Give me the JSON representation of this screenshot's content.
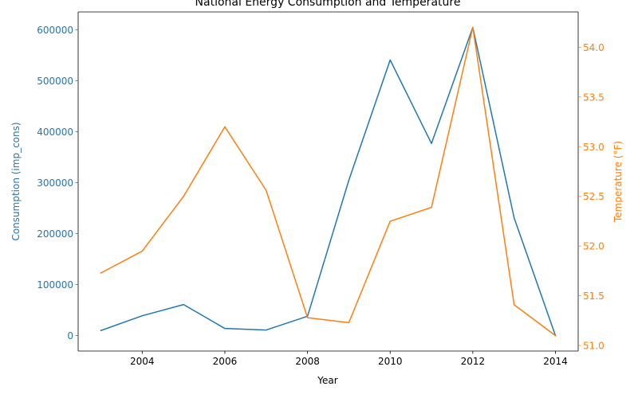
{
  "chart_data": {
    "type": "line",
    "title": "National Energy Consumption and Temperature",
    "xlabel": "Year",
    "x": [
      2003,
      2004,
      2005,
      2006,
      2007,
      2008,
      2009,
      2010,
      2011,
      2012,
      2013,
      2014
    ],
    "x_ticks": [
      2004,
      2006,
      2008,
      2010,
      2012,
      2014
    ],
    "xlim": [
      2002.45,
      2014.55
    ],
    "series": [
      {
        "axis": "left",
        "color": "#1f77b4",
        "values": [
          10000,
          39000,
          61000,
          14000,
          11000,
          38000,
          305000,
          541000,
          377000,
          605000,
          231000,
          0
        ]
      },
      {
        "axis": "right",
        "color": "#ff7f0e",
        "values": [
          51.73,
          51.95,
          52.5,
          53.2,
          52.56,
          51.28,
          51.23,
          52.25,
          52.39,
          54.2,
          51.41,
          51.1
        ]
      }
    ],
    "y_left": {
      "label": "Consumption (imp_cons)",
      "color": "#1f77b4",
      "ticks": [
        0,
        100000,
        200000,
        300000,
        400000,
        500000,
        600000
      ],
      "ylim": [
        -30250,
        635250
      ]
    },
    "y_right": {
      "label": "Temperature (°F)",
      "color": "#ff7f0e",
      "ticks": [
        51.0,
        51.5,
        52.0,
        52.5,
        53.0,
        53.5,
        54.0
      ],
      "ylim": [
        50.945,
        54.355
      ]
    },
    "grid": false,
    "legend": "none"
  }
}
